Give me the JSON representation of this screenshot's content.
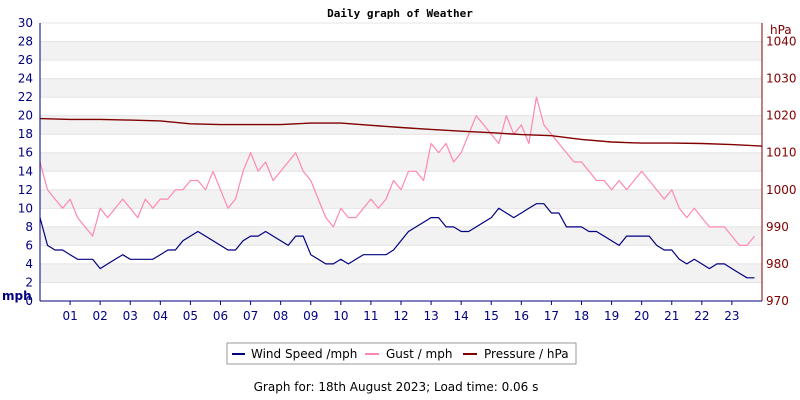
{
  "chart_data": {
    "type": "line",
    "title": "Daily graph of Weather",
    "left_axis": {
      "unit": "mph",
      "range": [
        0,
        30
      ],
      "ticks": [
        0,
        2,
        4,
        6,
        8,
        10,
        12,
        14,
        16,
        18,
        20,
        22,
        24,
        26,
        28,
        30
      ]
    },
    "right_axis": {
      "unit": "hPa",
      "range": [
        970,
        1045
      ],
      "ticks": [
        970,
        980,
        990,
        1000,
        1010,
        1020,
        1030,
        1040
      ]
    },
    "x_ticks": [
      "01",
      "02",
      "03",
      "04",
      "05",
      "06",
      "07",
      "08",
      "09",
      "10",
      "11",
      "12",
      "13",
      "14",
      "15",
      "16",
      "17",
      "18",
      "19",
      "20",
      "21",
      "22",
      "23"
    ],
    "x_range_hours": [
      0,
      24
    ],
    "grid": true,
    "legend_position": "bottom",
    "colors": {
      "wind": "#000080",
      "gust": "#ff88b0",
      "pressure": "#800000",
      "band": "#f2f2f2"
    },
    "series": [
      {
        "name": "Wind Speed /mph",
        "axis": "left",
        "x": [
          0,
          0.25,
          0.5,
          0.75,
          1,
          1.25,
          1.5,
          1.75,
          2,
          2.25,
          2.5,
          2.75,
          3,
          3.25,
          3.5,
          3.75,
          4,
          4.25,
          4.5,
          4.75,
          5,
          5.25,
          5.5,
          5.75,
          6,
          6.25,
          6.5,
          6.75,
          7,
          7.25,
          7.5,
          7.75,
          8,
          8.25,
          8.5,
          8.75,
          9,
          9.25,
          9.5,
          9.75,
          10,
          10.25,
          10.5,
          10.75,
          11,
          11.25,
          11.5,
          11.75,
          12,
          12.25,
          12.5,
          12.75,
          13,
          13.25,
          13.5,
          13.75,
          14,
          14.25,
          14.5,
          14.75,
          15,
          15.25,
          15.5,
          15.75,
          16,
          16.25,
          16.5,
          16.75,
          17,
          17.25,
          17.5,
          17.75,
          18,
          18.25,
          18.5,
          18.75,
          19,
          19.25,
          19.5,
          19.75,
          20,
          20.25,
          20.5,
          20.75,
          21,
          21.25,
          21.5,
          21.75,
          22,
          22.25,
          22.5,
          22.75,
          23,
          23.25,
          23.5,
          23.75
        ],
        "values": [
          9,
          6,
          5.5,
          5.5,
          5,
          4.5,
          4.5,
          4.5,
          3.5,
          4,
          4.5,
          5,
          4.5,
          4.5,
          4.5,
          4.5,
          5,
          5.5,
          5.5,
          6.5,
          7,
          7.5,
          7,
          6.5,
          6,
          5.5,
          5.5,
          6.5,
          7,
          7,
          7.5,
          7,
          6.5,
          6,
          7,
          7,
          5,
          4.5,
          4,
          4,
          4.5,
          4,
          4.5,
          5,
          5,
          5,
          5,
          5.5,
          6.5,
          7.5,
          8,
          8.5,
          9,
          9,
          8,
          8,
          7.5,
          7.5,
          8,
          8.5,
          9,
          10,
          9.5,
          9,
          9.5,
          10,
          10.5,
          10.5,
          9.5,
          9.5,
          8,
          8,
          8,
          7.5,
          7.5,
          7,
          6.5,
          6,
          7,
          7,
          7,
          7,
          6,
          5.5,
          5.5,
          4.5,
          4,
          4.5,
          4,
          3.5,
          4,
          4,
          3.5,
          3,
          2.5,
          2.5
        ]
      },
      {
        "name": "Gust / mph",
        "axis": "left",
        "x": [
          0,
          0.25,
          0.5,
          0.75,
          1,
          1.25,
          1.5,
          1.75,
          2,
          2.25,
          2.5,
          2.75,
          3,
          3.25,
          3.5,
          3.75,
          4,
          4.25,
          4.5,
          4.75,
          5,
          5.25,
          5.5,
          5.75,
          6,
          6.25,
          6.5,
          6.75,
          7,
          7.25,
          7.5,
          7.75,
          8,
          8.25,
          8.5,
          8.75,
          9,
          9.25,
          9.5,
          9.75,
          10,
          10.25,
          10.5,
          10.75,
          11,
          11.25,
          11.5,
          11.75,
          12,
          12.25,
          12.5,
          12.75,
          13,
          13.25,
          13.5,
          13.75,
          14,
          14.25,
          14.5,
          14.75,
          15,
          15.25,
          15.5,
          15.75,
          16,
          16.25,
          16.5,
          16.75,
          17,
          17.25,
          17.5,
          17.75,
          18,
          18.25,
          18.5,
          18.75,
          19,
          19.25,
          19.5,
          19.75,
          20,
          20.25,
          20.5,
          20.75,
          21,
          21.25,
          21.5,
          21.75,
          22,
          22.25,
          22.5,
          22.75,
          23,
          23.25,
          23.5,
          23.75
        ],
        "values": [
          15,
          12,
          11,
          10,
          11,
          9,
          8,
          7,
          10,
          9,
          10,
          11,
          10,
          9,
          11,
          10,
          11,
          11,
          12,
          12,
          13,
          13,
          12,
          14,
          12,
          10,
          11,
          14,
          16,
          14,
          15,
          13,
          14,
          15,
          16,
          14,
          13,
          11,
          9,
          8,
          10,
          9,
          9,
          10,
          11,
          10,
          11,
          13,
          12,
          14,
          14,
          13,
          17,
          16,
          17,
          15,
          16,
          18,
          20,
          19,
          18,
          17,
          20,
          18,
          19,
          17,
          22,
          19,
          18,
          17,
          16,
          15,
          15,
          14,
          13,
          13,
          12,
          13,
          12,
          13,
          14,
          13,
          12,
          11,
          12,
          10,
          9,
          10,
          9,
          8,
          8,
          8,
          7,
          6,
          6,
          7
        ]
      },
      {
        "name": "Pressure / hPa",
        "axis": "right",
        "x": [
          0,
          1,
          2,
          3,
          4,
          5,
          6,
          7,
          8,
          9,
          10,
          11,
          12,
          13,
          14,
          15,
          16,
          17,
          18,
          19,
          20,
          21,
          22,
          23,
          24
        ],
        "values": [
          1019.2,
          1019,
          1019,
          1018.8,
          1018.6,
          1017.8,
          1017.6,
          1017.6,
          1017.6,
          1018,
          1018,
          1017.4,
          1016.8,
          1016.3,
          1015.8,
          1015.4,
          1014.9,
          1014.6,
          1013.6,
          1012.9,
          1012.6,
          1012.6,
          1012.5,
          1012.2,
          1011.8
        ]
      }
    ]
  },
  "footer": "Graph for: 18th August 2023; Load time: 0.06 s"
}
